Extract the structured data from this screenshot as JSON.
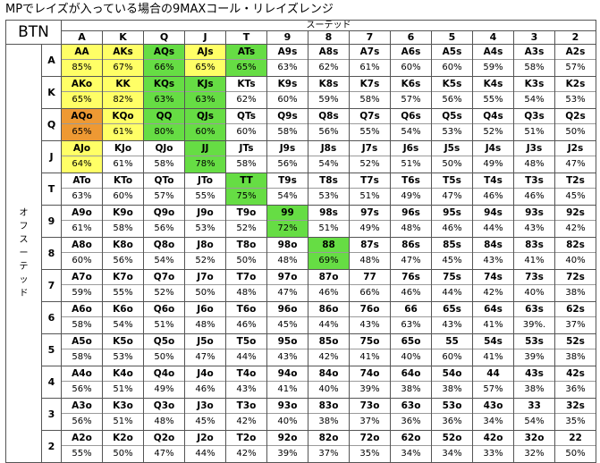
{
  "title": "MPでレイズが入っている場合の9MAXコール・リレイズレンジ",
  "position": "BTN",
  "suited_label": "スーテッド",
  "offsuit_label": "オフスーテッド",
  "ranks": [
    "A",
    "K",
    "Q",
    "J",
    "T",
    "9",
    "8",
    "7",
    "6",
    "5",
    "4",
    "3",
    "2"
  ],
  "colors": {
    "yellow": "#ffff66",
    "green": "#66dd44",
    "orange": "#ee9933",
    "white": "#ffffff"
  },
  "rows": [
    {
      "rank": "A",
      "cells": [
        {
          "hand": "AA",
          "pct": "85%",
          "color": "yellow"
        },
        {
          "hand": "AKs",
          "pct": "67%",
          "color": "yellow"
        },
        {
          "hand": "AQs",
          "pct": "66%",
          "color": "green"
        },
        {
          "hand": "AJs",
          "pct": "65%",
          "color": "yellow"
        },
        {
          "hand": "ATs",
          "pct": "65%",
          "color": "green"
        },
        {
          "hand": "A9s",
          "pct": "63%",
          "color": "white"
        },
        {
          "hand": "A8s",
          "pct": "62%",
          "color": "white"
        },
        {
          "hand": "A7s",
          "pct": "61%",
          "color": "white"
        },
        {
          "hand": "A6s",
          "pct": "60%",
          "color": "white"
        },
        {
          "hand": "A5s",
          "pct": "60%",
          "color": "white"
        },
        {
          "hand": "A4s",
          "pct": "59%",
          "color": "white"
        },
        {
          "hand": "A3s",
          "pct": "58%",
          "color": "white"
        },
        {
          "hand": "A2s",
          "pct": "57%",
          "color": "white"
        }
      ]
    },
    {
      "rank": "K",
      "cells": [
        {
          "hand": "AKo",
          "pct": "65%",
          "color": "yellow"
        },
        {
          "hand": "KK",
          "pct": "82%",
          "color": "yellow"
        },
        {
          "hand": "KQs",
          "pct": "63%",
          "color": "green"
        },
        {
          "hand": "KJs",
          "pct": "63%",
          "color": "green"
        },
        {
          "hand": "KTs",
          "pct": "62%",
          "color": "white"
        },
        {
          "hand": "K9s",
          "pct": "60%",
          "color": "white"
        },
        {
          "hand": "K8s",
          "pct": "59%",
          "color": "white"
        },
        {
          "hand": "K7s",
          "pct": "58%",
          "color": "white"
        },
        {
          "hand": "K6s",
          "pct": "57%",
          "color": "white"
        },
        {
          "hand": "K5s",
          "pct": "56%",
          "color": "white"
        },
        {
          "hand": "K4s",
          "pct": "55%",
          "color": "white"
        },
        {
          "hand": "K3s",
          "pct": "54%",
          "color": "white"
        },
        {
          "hand": "K2s",
          "pct": "53%",
          "color": "white"
        }
      ]
    },
    {
      "rank": "Q",
      "cells": [
        {
          "hand": "AQo",
          "pct": "65%",
          "color": "orange"
        },
        {
          "hand": "KQo",
          "pct": "61%",
          "color": "yellow"
        },
        {
          "hand": "QQ",
          "pct": "80%",
          "color": "green"
        },
        {
          "hand": "QJs",
          "pct": "60%",
          "color": "green"
        },
        {
          "hand": "QTs",
          "pct": "60%",
          "color": "white"
        },
        {
          "hand": "Q9s",
          "pct": "58%",
          "color": "white"
        },
        {
          "hand": "Q8s",
          "pct": "56%",
          "color": "white"
        },
        {
          "hand": "Q7s",
          "pct": "55%",
          "color": "white"
        },
        {
          "hand": "Q6s",
          "pct": "54%",
          "color": "white"
        },
        {
          "hand": "Q5s",
          "pct": "53%",
          "color": "white"
        },
        {
          "hand": "Q4s",
          "pct": "52%",
          "color": "white"
        },
        {
          "hand": "Q3s",
          "pct": "51%",
          "color": "white"
        },
        {
          "hand": "Q2s",
          "pct": "50%",
          "color": "white"
        }
      ]
    },
    {
      "rank": "J",
      "cells": [
        {
          "hand": "AJo",
          "pct": "64%",
          "color": "yellow"
        },
        {
          "hand": "KJo",
          "pct": "61%",
          "color": "white"
        },
        {
          "hand": "QJo",
          "pct": "58%",
          "color": "white"
        },
        {
          "hand": "JJ",
          "pct": "78%",
          "color": "green"
        },
        {
          "hand": "JTs",
          "pct": "58%",
          "color": "white"
        },
        {
          "hand": "J9s",
          "pct": "56%",
          "color": "white"
        },
        {
          "hand": "J8s",
          "pct": "54%",
          "color": "white"
        },
        {
          "hand": "J7s",
          "pct": "52%",
          "color": "white"
        },
        {
          "hand": "J6s",
          "pct": "51%",
          "color": "white"
        },
        {
          "hand": "J5s",
          "pct": "50%",
          "color": "white"
        },
        {
          "hand": "J4s",
          "pct": "49%",
          "color": "white"
        },
        {
          "hand": "J3s",
          "pct": "48%",
          "color": "white"
        },
        {
          "hand": "J2s",
          "pct": "47%",
          "color": "white"
        }
      ]
    },
    {
      "rank": "T",
      "cells": [
        {
          "hand": "ATo",
          "pct": "63%",
          "color": "white"
        },
        {
          "hand": "KTo",
          "pct": "60%",
          "color": "white"
        },
        {
          "hand": "QTo",
          "pct": "57%",
          "color": "white"
        },
        {
          "hand": "JTo",
          "pct": "55%",
          "color": "white"
        },
        {
          "hand": "TT",
          "pct": "75%",
          "color": "green"
        },
        {
          "hand": "T9s",
          "pct": "54%",
          "color": "white"
        },
        {
          "hand": "T8s",
          "pct": "53%",
          "color": "white"
        },
        {
          "hand": "T7s",
          "pct": "51%",
          "color": "white"
        },
        {
          "hand": "T6s",
          "pct": "49%",
          "color": "white"
        },
        {
          "hand": "T5s",
          "pct": "47%",
          "color": "white"
        },
        {
          "hand": "T4s",
          "pct": "46%",
          "color": "white"
        },
        {
          "hand": "T3s",
          "pct": "46%",
          "color": "white"
        },
        {
          "hand": "T2s",
          "pct": "45%",
          "color": "white"
        }
      ]
    },
    {
      "rank": "9",
      "cells": [
        {
          "hand": "A9o",
          "pct": "61%",
          "color": "white"
        },
        {
          "hand": "K9o",
          "pct": "58%",
          "color": "white"
        },
        {
          "hand": "Q9o",
          "pct": "56%",
          "color": "white"
        },
        {
          "hand": "J9o",
          "pct": "53%",
          "color": "white"
        },
        {
          "hand": "T9o",
          "pct": "52%",
          "color": "white"
        },
        {
          "hand": "99",
          "pct": "72%",
          "color": "green"
        },
        {
          "hand": "98s",
          "pct": "51%",
          "color": "white"
        },
        {
          "hand": "97s",
          "pct": "49%",
          "color": "white"
        },
        {
          "hand": "96s",
          "pct": "48%",
          "color": "white"
        },
        {
          "hand": "95s",
          "pct": "46%",
          "color": "white"
        },
        {
          "hand": "94s",
          "pct": "44%",
          "color": "white"
        },
        {
          "hand": "93s",
          "pct": "43%",
          "color": "white"
        },
        {
          "hand": "92s",
          "pct": "42%",
          "color": "white"
        }
      ]
    },
    {
      "rank": "8",
      "cells": [
        {
          "hand": "A8o",
          "pct": "60%",
          "color": "white"
        },
        {
          "hand": "K8o",
          "pct": "56%",
          "color": "white"
        },
        {
          "hand": "Q8o",
          "pct": "54%",
          "color": "white"
        },
        {
          "hand": "J8o",
          "pct": "52%",
          "color": "white"
        },
        {
          "hand": "T8o",
          "pct": "50%",
          "color": "white"
        },
        {
          "hand": "98o",
          "pct": "48%",
          "color": "white"
        },
        {
          "hand": "88",
          "pct": "69%",
          "color": "green"
        },
        {
          "hand": "87s",
          "pct": "48%",
          "color": "white"
        },
        {
          "hand": "86s",
          "pct": "47%",
          "color": "white"
        },
        {
          "hand": "85s",
          "pct": "45%",
          "color": "white"
        },
        {
          "hand": "84s",
          "pct": "43%",
          "color": "white"
        },
        {
          "hand": "83s",
          "pct": "41%",
          "color": "white"
        },
        {
          "hand": "82s",
          "pct": "40%",
          "color": "white"
        }
      ]
    },
    {
      "rank": "7",
      "cells": [
        {
          "hand": "A7o",
          "pct": "59%",
          "color": "white"
        },
        {
          "hand": "K7o",
          "pct": "55%",
          "color": "white"
        },
        {
          "hand": "Q7o",
          "pct": "52%",
          "color": "white"
        },
        {
          "hand": "J7o",
          "pct": "50%",
          "color": "white"
        },
        {
          "hand": "T7o",
          "pct": "48%",
          "color": "white"
        },
        {
          "hand": "97o",
          "pct": "47%",
          "color": "white"
        },
        {
          "hand": "87o",
          "pct": "46%",
          "color": "white"
        },
        {
          "hand": "77",
          "pct": "66%",
          "color": "white"
        },
        {
          "hand": "76s",
          "pct": "46%",
          "color": "white"
        },
        {
          "hand": "75s",
          "pct": "44%",
          "color": "white"
        },
        {
          "hand": "74s",
          "pct": "42%",
          "color": "white"
        },
        {
          "hand": "73s",
          "pct": "40%",
          "color": "white"
        },
        {
          "hand": "72s",
          "pct": "38%",
          "color": "white"
        }
      ]
    },
    {
      "rank": "6",
      "cells": [
        {
          "hand": "A6o",
          "pct": "58%",
          "color": "white"
        },
        {
          "hand": "K6o",
          "pct": "54%",
          "color": "white"
        },
        {
          "hand": "Q6o",
          "pct": "51%",
          "color": "white"
        },
        {
          "hand": "J6o",
          "pct": "48%",
          "color": "white"
        },
        {
          "hand": "T6o",
          "pct": "46%",
          "color": "white"
        },
        {
          "hand": "96o",
          "pct": "45%",
          "color": "white"
        },
        {
          "hand": "86o",
          "pct": "44%",
          "color": "white"
        },
        {
          "hand": "76o",
          "pct": "43%",
          "color": "white"
        },
        {
          "hand": "66",
          "pct": "63%",
          "color": "white"
        },
        {
          "hand": "65s",
          "pct": "43%",
          "color": "white"
        },
        {
          "hand": "64s",
          "pct": "41%",
          "color": "white"
        },
        {
          "hand": "63s",
          "pct": "39%.",
          "color": "white"
        },
        {
          "hand": "62s",
          "pct": "37%",
          "color": "white"
        }
      ]
    },
    {
      "rank": "5",
      "cells": [
        {
          "hand": "A5o",
          "pct": "58%",
          "color": "white"
        },
        {
          "hand": "K5o",
          "pct": "53%",
          "color": "white"
        },
        {
          "hand": "Q5o",
          "pct": "50%",
          "color": "white"
        },
        {
          "hand": "J5o",
          "pct": "47%",
          "color": "white"
        },
        {
          "hand": "T5o",
          "pct": "44%",
          "color": "white"
        },
        {
          "hand": "95o",
          "pct": "43%",
          "color": "white"
        },
        {
          "hand": "85o",
          "pct": "42%",
          "color": "white"
        },
        {
          "hand": "75o",
          "pct": "41%",
          "color": "white"
        },
        {
          "hand": "65o",
          "pct": "40%",
          "color": "white"
        },
        {
          "hand": "55",
          "pct": "60%",
          "color": "white"
        },
        {
          "hand": "54s",
          "pct": "41%",
          "color": "white"
        },
        {
          "hand": "53s",
          "pct": "39%",
          "color": "white"
        },
        {
          "hand": "52s",
          "pct": "38%",
          "color": "white"
        }
      ]
    },
    {
      "rank": "4",
      "cells": [
        {
          "hand": "A4o",
          "pct": "56%",
          "color": "white"
        },
        {
          "hand": "K4o",
          "pct": "51%",
          "color": "white"
        },
        {
          "hand": "Q4o",
          "pct": "49%",
          "color": "white"
        },
        {
          "hand": "J4o",
          "pct": "46%",
          "color": "white"
        },
        {
          "hand": "T4o",
          "pct": "43%",
          "color": "white"
        },
        {
          "hand": "94o",
          "pct": "41%",
          "color": "white"
        },
        {
          "hand": "84o",
          "pct": "40%",
          "color": "white"
        },
        {
          "hand": "74o",
          "pct": "39%",
          "color": "white"
        },
        {
          "hand": "64o",
          "pct": "38%",
          "color": "white"
        },
        {
          "hand": "54o",
          "pct": "38%",
          "color": "white"
        },
        {
          "hand": "44",
          "pct": "57%",
          "color": "white"
        },
        {
          "hand": "43s",
          "pct": "38%",
          "color": "white"
        },
        {
          "hand": "42s",
          "pct": "36%",
          "color": "white"
        }
      ]
    },
    {
      "rank": "3",
      "cells": [
        {
          "hand": "A3o",
          "pct": "56%",
          "color": "white"
        },
        {
          "hand": "K3o",
          "pct": "51%",
          "color": "white"
        },
        {
          "hand": "Q3o",
          "pct": "48%",
          "color": "white"
        },
        {
          "hand": "J3o",
          "pct": "45%",
          "color": "white"
        },
        {
          "hand": "T3o",
          "pct": "42%",
          "color": "white"
        },
        {
          "hand": "93o",
          "pct": "40%",
          "color": "white"
        },
        {
          "hand": "83o",
          "pct": "38%",
          "color": "white"
        },
        {
          "hand": "73o",
          "pct": "37%",
          "color": "white"
        },
        {
          "hand": "63o",
          "pct": "36%",
          "color": "white"
        },
        {
          "hand": "53o",
          "pct": "36%",
          "color": "white"
        },
        {
          "hand": "43o",
          "pct": "34%",
          "color": "white"
        },
        {
          "hand": "33",
          "pct": "54%",
          "color": "white"
        },
        {
          "hand": "32s",
          "pct": "35%",
          "color": "white"
        }
      ]
    },
    {
      "rank": "2",
      "cells": [
        {
          "hand": "A2o",
          "pct": "55%",
          "color": "white"
        },
        {
          "hand": "K2o",
          "pct": "50%",
          "color": "white"
        },
        {
          "hand": "Q2o",
          "pct": "47%",
          "color": "white"
        },
        {
          "hand": "J2o",
          "pct": "44%",
          "color": "white"
        },
        {
          "hand": "T2o",
          "pct": "42%",
          "color": "white"
        },
        {
          "hand": "92o",
          "pct": "39%",
          "color": "white"
        },
        {
          "hand": "82o",
          "pct": "37%",
          "color": "white"
        },
        {
          "hand": "72o",
          "pct": "35%",
          "color": "white"
        },
        {
          "hand": "62o",
          "pct": "34%",
          "color": "white"
        },
        {
          "hand": "52o",
          "pct": "34%",
          "color": "white"
        },
        {
          "hand": "42o",
          "pct": "33%",
          "color": "white"
        },
        {
          "hand": "32o",
          "pct": "32%",
          "color": "white"
        },
        {
          "hand": "22",
          "pct": "50%",
          "color": "white"
        }
      ]
    }
  ]
}
